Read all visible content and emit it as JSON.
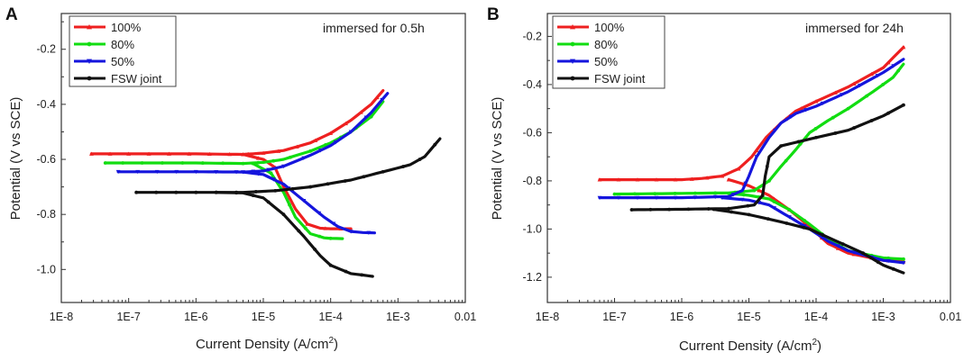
{
  "chart_data": [
    {
      "panel": "A",
      "type": "line",
      "title": "",
      "annotation": "immersed for 0.5h",
      "xlabel": "Current Density (A/cm",
      "xlabel_sup": "2",
      "xlabel_tail": ")",
      "ylabel": "Potential (V vs SCE)",
      "xscale": "log",
      "xlim": [
        1e-08,
        0.01
      ],
      "ylim": [
        -1.12,
        -0.07
      ],
      "x_ticks": [
        1e-08,
        1e-07,
        1e-06,
        1e-05,
        0.0001,
        0.001,
        0.01
      ],
      "x_tick_labels": [
        "1E-8",
        "1E-7",
        "1E-6",
        "1E-5",
        "1E-4",
        "1E-3",
        "0.01"
      ],
      "y_ticks": [
        -0.2,
        -0.4,
        -0.6,
        -0.8,
        -1.0
      ],
      "y_tick_labels": [
        "-0.2",
        "-0.4",
        "-0.6",
        "-0.8",
        "-1.0"
      ],
      "legend_position": "top-left",
      "series": [
        {
          "name": "100%",
          "color": "#ee2020",
          "marker": "triangle-up",
          "anodic": [
            [
              2.8e-08,
              -0.58
            ],
            [
              1e-07,
              -0.58
            ],
            [
              1e-06,
              -0.58
            ],
            [
              5e-06,
              -0.582
            ],
            [
              1e-05,
              -0.577
            ],
            [
              2e-05,
              -0.568
            ],
            [
              5e-05,
              -0.54
            ],
            [
              0.0001,
              -0.505
            ],
            [
              0.0002,
              -0.458
            ],
            [
              0.0004,
              -0.4
            ],
            [
              0.0006,
              -0.35
            ]
          ],
          "cathodic": [
            [
              5e-06,
              -0.582
            ],
            [
              1e-05,
              -0.6
            ],
            [
              1.5e-05,
              -0.63
            ],
            [
              2e-05,
              -0.7
            ],
            [
              3e-05,
              -0.78
            ],
            [
              4.5e-05,
              -0.835
            ],
            [
              7e-05,
              -0.85
            ],
            [
              0.0001,
              -0.852
            ],
            [
              0.0002,
              -0.852
            ]
          ]
        },
        {
          "name": "80%",
          "color": "#11dd11",
          "marker": "circle",
          "anodic": [
            [
              4.5e-08,
              -0.613
            ],
            [
              1e-07,
              -0.613
            ],
            [
              1e-06,
              -0.613
            ],
            [
              5e-06,
              -0.615
            ],
            [
              1e-05,
              -0.611
            ],
            [
              2e-05,
              -0.6
            ],
            [
              5e-05,
              -0.57
            ],
            [
              0.0001,
              -0.54
            ],
            [
              0.0002,
              -0.5
            ],
            [
              0.0004,
              -0.445
            ],
            [
              0.0006,
              -0.39
            ]
          ],
          "cathodic": [
            [
              7e-06,
              -0.615
            ],
            [
              1.3e-05,
              -0.65
            ],
            [
              2e-05,
              -0.72
            ],
            [
              3e-05,
              -0.81
            ],
            [
              5e-05,
              -0.87
            ],
            [
              8e-05,
              -0.885
            ],
            [
              0.0001,
              -0.887
            ],
            [
              0.00015,
              -0.888
            ]
          ]
        },
        {
          "name": "50%",
          "color": "#1515dd",
          "marker": "triangle-down",
          "anodic": [
            [
              7e-08,
              -0.645
            ],
            [
              1e-06,
              -0.645
            ],
            [
              5e-06,
              -0.646
            ],
            [
              1e-05,
              -0.642
            ],
            [
              2e-05,
              -0.625
            ],
            [
              5e-05,
              -0.585
            ],
            [
              0.0001,
              -0.55
            ],
            [
              0.0002,
              -0.5
            ],
            [
              0.0004,
              -0.43
            ],
            [
              0.0007,
              -0.36
            ]
          ],
          "cathodic": [
            [
              5e-06,
              -0.646
            ],
            [
              1e-05,
              -0.655
            ],
            [
              2e-05,
              -0.69
            ],
            [
              4e-05,
              -0.75
            ],
            [
              8e-05,
              -0.81
            ],
            [
              0.00013,
              -0.845
            ],
            [
              0.0002,
              -0.862
            ],
            [
              0.0003,
              -0.866
            ],
            [
              0.00045,
              -0.867
            ]
          ]
        },
        {
          "name": "FSW joint",
          "color": "#111111",
          "marker": "circle",
          "anodic": [
            [
              1.3e-07,
              -0.72
            ],
            [
              1e-06,
              -0.72
            ],
            [
              5e-06,
              -0.72
            ],
            [
              1.5e-05,
              -0.714
            ],
            [
              5e-05,
              -0.7
            ],
            [
              0.0002,
              -0.675
            ],
            [
              0.0006,
              -0.645
            ],
            [
              0.0015,
              -0.62
            ],
            [
              0.0025,
              -0.59
            ],
            [
              0.0042,
              -0.525
            ]
          ],
          "cathodic": [
            [
              2e-06,
              -0.72
            ],
            [
              5e-06,
              -0.722
            ],
            [
              1e-05,
              -0.74
            ],
            [
              2e-05,
              -0.8
            ],
            [
              4e-05,
              -0.88
            ],
            [
              7e-05,
              -0.95
            ],
            [
              0.0001,
              -0.985
            ],
            [
              0.0002,
              -1.015
            ],
            [
              0.00042,
              -1.025
            ]
          ]
        }
      ]
    },
    {
      "panel": "B",
      "type": "line",
      "title": "",
      "annotation": "immersed for 24h",
      "xlabel": "Current Density (A/cm",
      "xlabel_sup": "2",
      "xlabel_tail": ")",
      "ylabel": "Potential (V vs SCE)",
      "xscale": "log",
      "xlim": [
        1e-08,
        0.01
      ],
      "ylim": [
        -1.305,
        -0.105
      ],
      "x_ticks": [
        1e-08,
        1e-07,
        1e-06,
        1e-05,
        0.0001,
        0.001,
        0.01
      ],
      "x_tick_labels": [
        "1E-8",
        "1E-7",
        "1E-6",
        "1E-5",
        "1E-4",
        "1E-3",
        "0.01"
      ],
      "y_ticks": [
        -0.2,
        -0.4,
        -0.6,
        -0.8,
        -1.0,
        -1.2
      ],
      "y_tick_labels": [
        "-0.2",
        "-0.4",
        "-0.6",
        "-0.8",
        "-1.0",
        "-1.2"
      ],
      "legend_position": "top-left",
      "series": [
        {
          "name": "100%",
          "color": "#ee2020",
          "marker": "triangle-up",
          "anodic": [
            [
              6e-08,
              -0.795
            ],
            [
              1e-06,
              -0.795
            ],
            [
              2e-06,
              -0.79
            ],
            [
              4e-06,
              -0.78
            ],
            [
              7e-06,
              -0.75
            ],
            [
              1.1e-05,
              -0.7
            ],
            [
              1.8e-05,
              -0.62
            ],
            [
              3e-05,
              -0.56
            ],
            [
              5e-05,
              -0.51
            ],
            [
              0.0001,
              -0.47
            ],
            [
              0.0003,
              -0.41
            ],
            [
              0.001,
              -0.33
            ],
            [
              0.002,
              -0.245
            ]
          ],
          "cathodic": [
            [
              5e-06,
              -0.795
            ],
            [
              1e-05,
              -0.82
            ],
            [
              2e-05,
              -0.86
            ],
            [
              4e-05,
              -0.92
            ],
            [
              8e-05,
              -0.99
            ],
            [
              0.00015,
              -1.06
            ],
            [
              0.0003,
              -1.1
            ],
            [
              0.001,
              -1.13
            ],
            [
              0.002,
              -1.135
            ]
          ]
        },
        {
          "name": "80%",
          "color": "#11dd11",
          "marker": "circle",
          "anodic": [
            [
              1e-07,
              -0.855
            ],
            [
              1e-06,
              -0.852
            ],
            [
              5e-06,
              -0.85
            ],
            [
              1.2e-05,
              -0.84
            ],
            [
              2e-05,
              -0.8
            ],
            [
              3e-05,
              -0.74
            ],
            [
              5e-05,
              -0.67
            ],
            [
              8e-05,
              -0.6
            ],
            [
              0.00015,
              -0.55
            ],
            [
              0.0003,
              -0.5
            ],
            [
              0.0007,
              -0.43
            ],
            [
              0.0014,
              -0.37
            ],
            [
              0.002,
              -0.315
            ]
          ],
          "cathodic": [
            [
              5e-06,
              -0.852
            ],
            [
              1e-05,
              -0.86
            ],
            [
              2e-05,
              -0.875
            ],
            [
              4e-05,
              -0.92
            ],
            [
              8e-05,
              -0.98
            ],
            [
              0.00015,
              -1.04
            ],
            [
              0.0003,
              -1.09
            ],
            [
              0.001,
              -1.12
            ],
            [
              0.002,
              -1.125
            ]
          ]
        },
        {
          "name": "50%",
          "color": "#1515dd",
          "marker": "triangle-down",
          "anodic": [
            [
              6e-08,
              -0.87
            ],
            [
              1e-06,
              -0.87
            ],
            [
              5e-06,
              -0.865
            ],
            [
              8e-06,
              -0.84
            ],
            [
              1e-05,
              -0.78
            ],
            [
              1.3e-05,
              -0.7
            ],
            [
              2e-05,
              -0.62
            ],
            [
              3e-05,
              -0.56
            ],
            [
              5e-05,
              -0.52
            ],
            [
              0.0001,
              -0.49
            ],
            [
              0.0003,
              -0.43
            ],
            [
              0.001,
              -0.35
            ],
            [
              0.002,
              -0.295
            ]
          ],
          "cathodic": [
            [
              4e-06,
              -0.87
            ],
            [
              1e-05,
              -0.88
            ],
            [
              2e-05,
              -0.9
            ],
            [
              4e-05,
              -0.95
            ],
            [
              8e-05,
              -1.0
            ],
            [
              0.00015,
              -1.05
            ],
            [
              0.0003,
              -1.09
            ],
            [
              0.001,
              -1.13
            ],
            [
              0.002,
              -1.14
            ]
          ]
        },
        {
          "name": "FSW joint",
          "color": "#111111",
          "marker": "circle",
          "anodic": [
            [
              1.8e-07,
              -0.92
            ],
            [
              1e-06,
              -0.918
            ],
            [
              5e-06,
              -0.915
            ],
            [
              1.2e-05,
              -0.9
            ],
            [
              1.6e-05,
              -0.86
            ],
            [
              1.75e-05,
              -0.78
            ],
            [
              2e-05,
              -0.7
            ],
            [
              3e-05,
              -0.655
            ],
            [
              0.0001,
              -0.62
            ],
            [
              0.0003,
              -0.59
            ],
            [
              0.001,
              -0.53
            ],
            [
              0.002,
              -0.485
            ]
          ],
          "cathodic": [
            [
              3e-06,
              -0.918
            ],
            [
              1e-05,
              -0.94
            ],
            [
              3e-05,
              -0.97
            ],
            [
              8e-05,
              -1.0
            ],
            [
              0.0002,
              -1.05
            ],
            [
              0.0005,
              -1.1
            ],
            [
              0.001,
              -1.15
            ],
            [
              0.002,
              -1.182
            ]
          ]
        }
      ]
    }
  ]
}
